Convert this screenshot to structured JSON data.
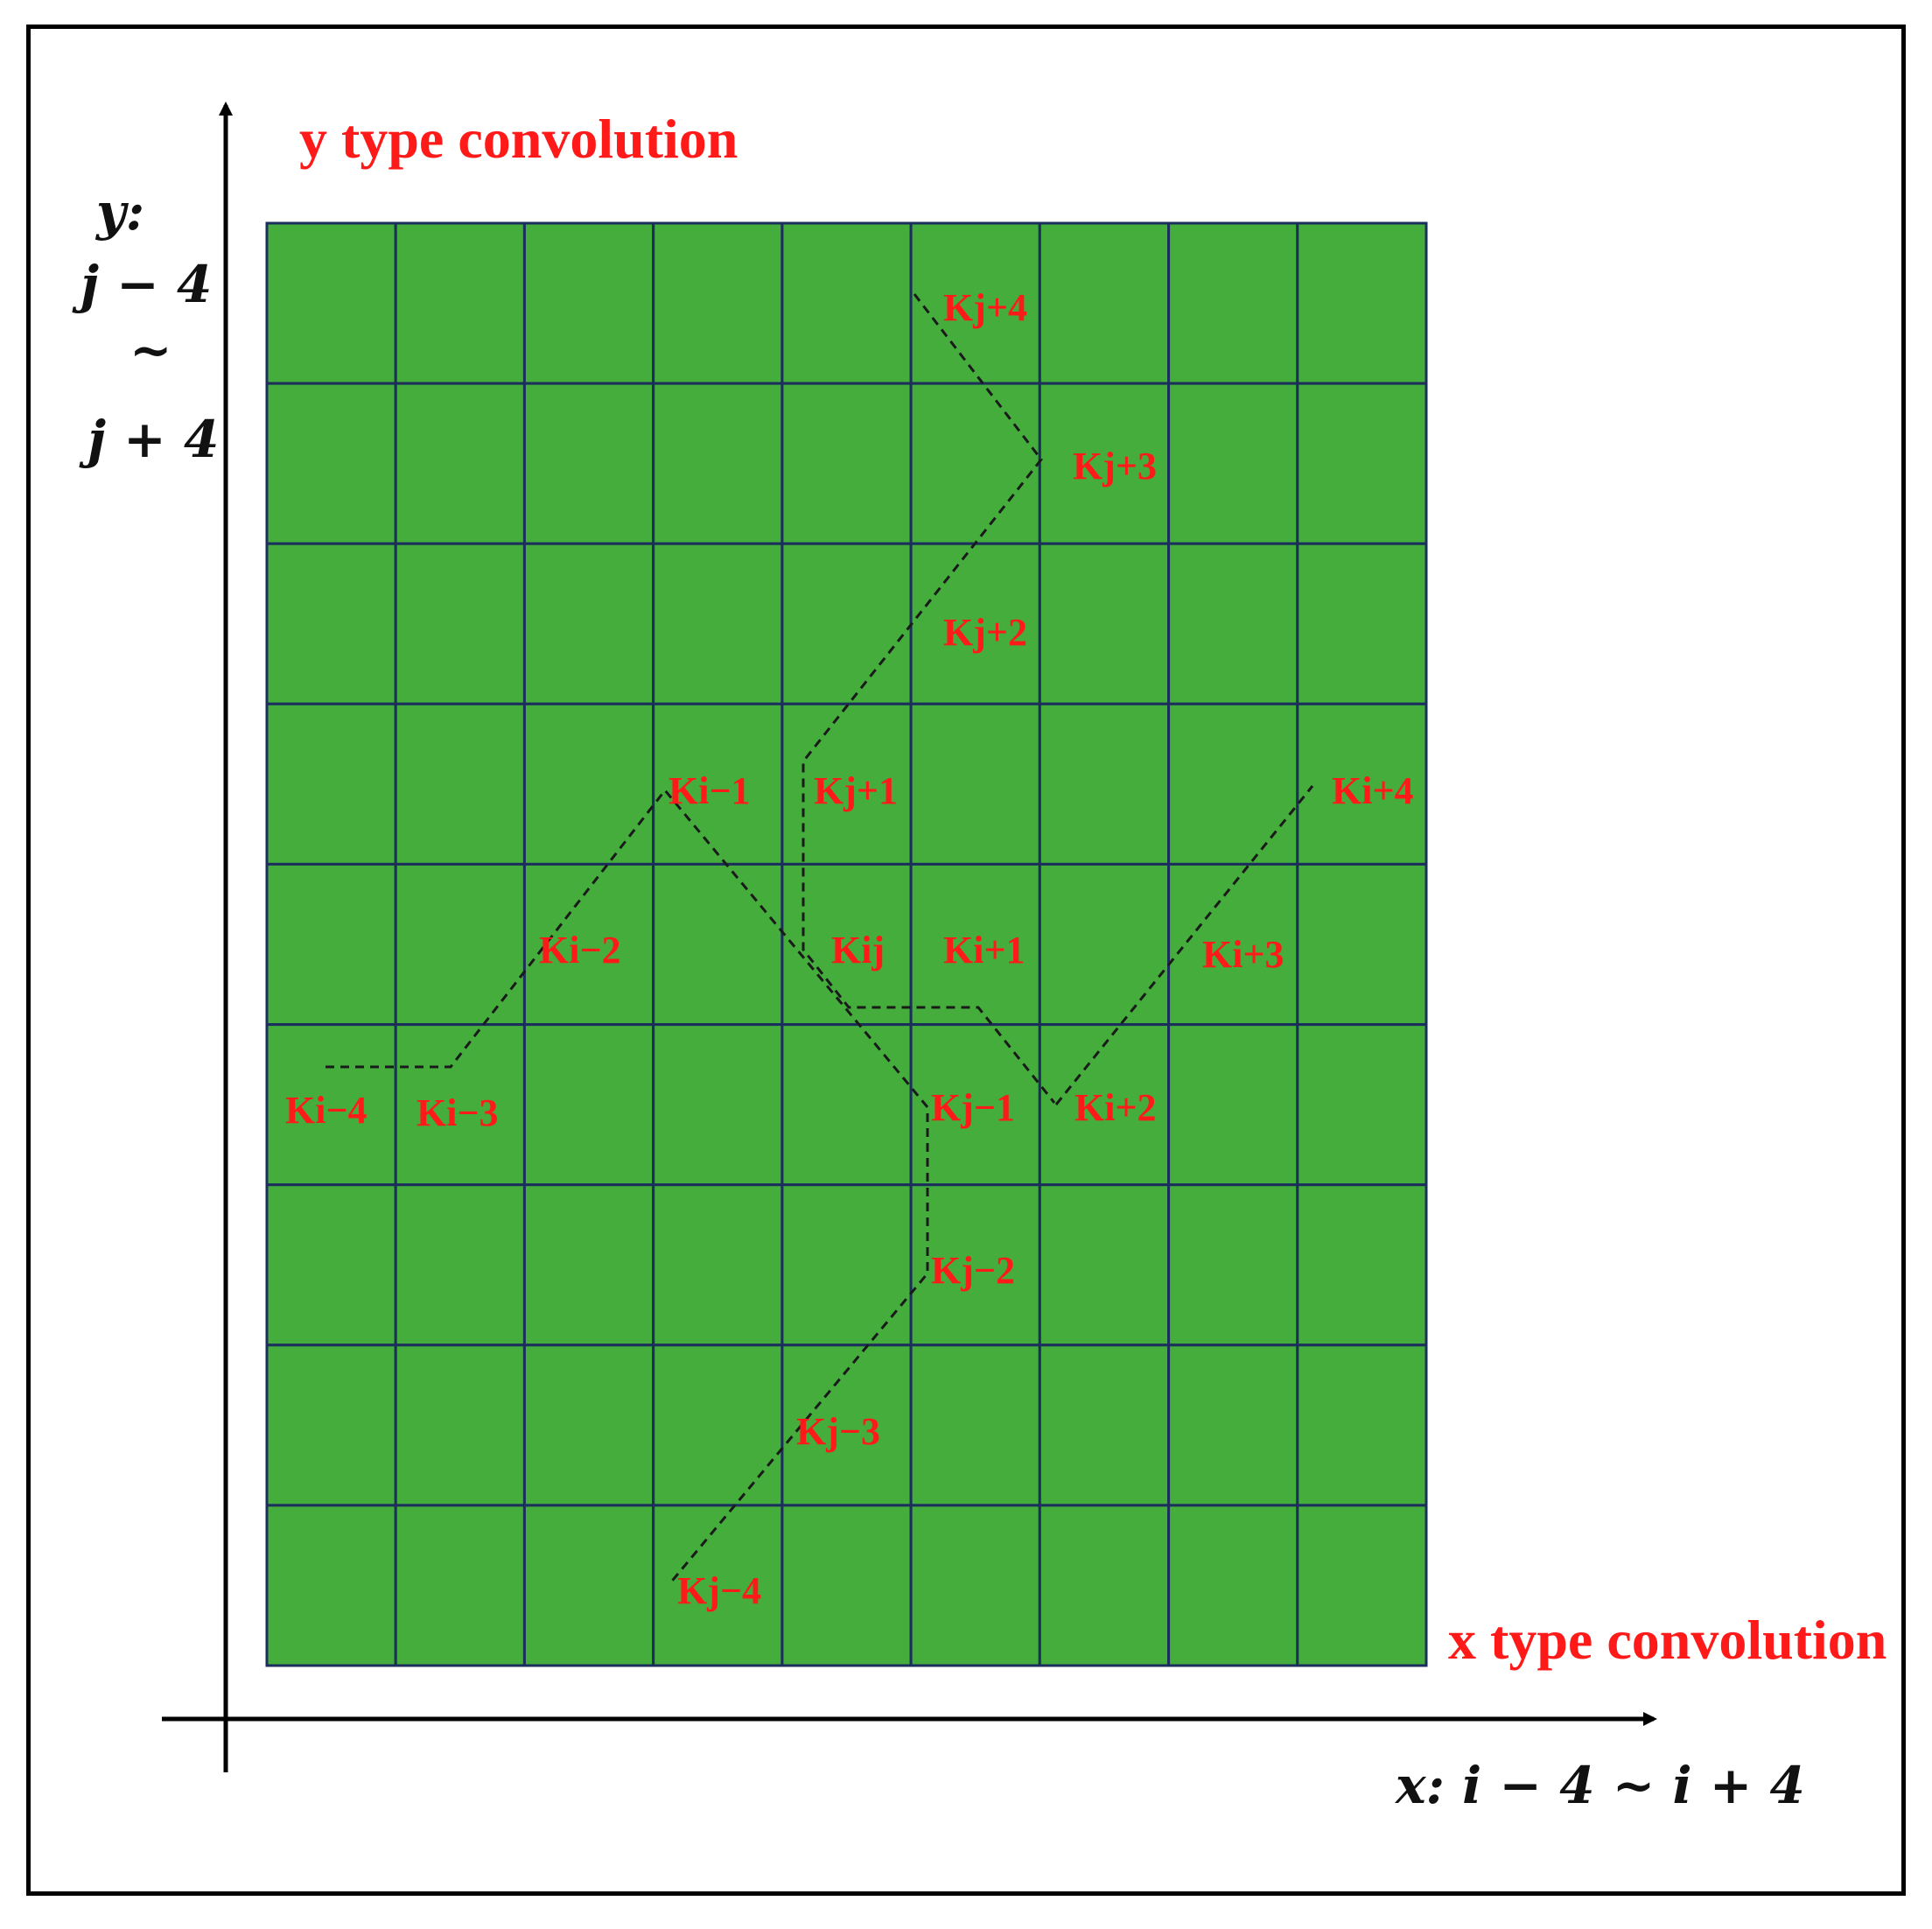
{
  "titles": {
    "y_convolution": "y type convolution",
    "x_convolution": "x type convolution"
  },
  "axes": {
    "y_label_line1": "y:",
    "y_label_line2": "j − 4",
    "y_label_line3": "~",
    "y_label_line4": "j + 4",
    "x_label": "x: i − 4 ~ i + 4"
  },
  "grid": {
    "rows": 9,
    "cols": 9,
    "cell_color": "#44ad3c",
    "line_color": "#1b2e5c"
  },
  "labels": {
    "kj_plus_4": "Kj+4",
    "kj_plus_3": "Kj+3",
    "kj_plus_2": "Kj+2",
    "kj_plus_1": "Kj+1",
    "ki_minus_1": "Ki−1",
    "ki_plus_4": "Ki+4",
    "ki_minus_2": "Ki−2",
    "kij": "Kij",
    "ki_plus_1": "Ki+1",
    "ki_plus_3": "Ki+3",
    "ki_minus_4": "Ki−4",
    "ki_minus_3": "Ki−3",
    "kj_minus_1": "Kj−1",
    "ki_plus_2": "Ki+2",
    "kj_minus_2": "Kj−2",
    "kj_minus_3": "Kj−3",
    "kj_minus_4": "Kj−4"
  }
}
